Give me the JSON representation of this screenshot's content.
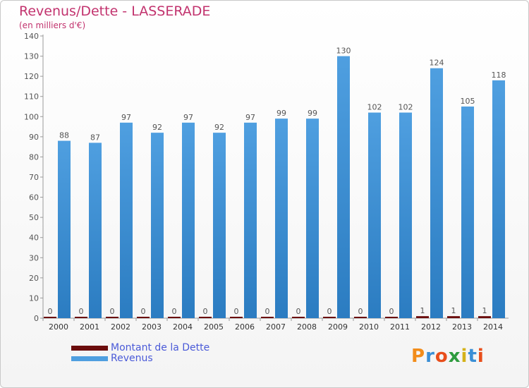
{
  "chart_data": {
    "type": "bar",
    "title": "Revenus/Dette - LASSERADE",
    "subtitle": "(en milliers d'€)",
    "categories": [
      "2000",
      "2001",
      "2002",
      "2003",
      "2004",
      "2005",
      "2006",
      "2007",
      "2008",
      "2009",
      "2010",
      "2011",
      "2012",
      "2013",
      "2014"
    ],
    "series": [
      {
        "name": "Montant de la Dette",
        "color": "#6b0d0d",
        "values": [
          0,
          0,
          0,
          0,
          0,
          0,
          0,
          0,
          0,
          0,
          0,
          0,
          1,
          1,
          1
        ]
      },
      {
        "name": "Revenus",
        "color": "#4f9fe0",
        "values": [
          88,
          87,
          97,
          92,
          97,
          92,
          97,
          99,
          99,
          130,
          102,
          102,
          124,
          105,
          118
        ]
      }
    ],
    "ylim": [
      0,
      140
    ],
    "yticks": [
      0,
      10,
      20,
      30,
      40,
      50,
      60,
      70,
      80,
      90,
      100,
      110,
      120,
      130,
      140
    ],
    "grid": false,
    "legend_position": "bottom-left"
  },
  "logo": {
    "text": "Proxiti",
    "colors": [
      "#f28c1a",
      "#3a8fd6",
      "#e84e1b",
      "#2e9b3e",
      "#d4b21a",
      "#3a8fd6",
      "#e84e1b"
    ]
  }
}
